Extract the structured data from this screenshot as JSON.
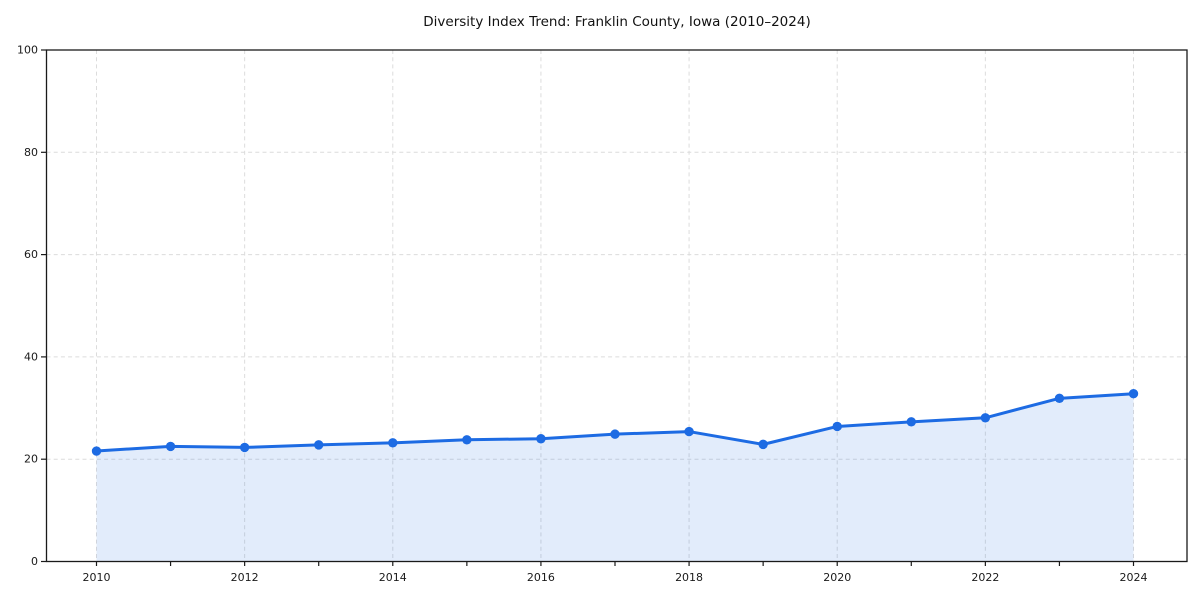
{
  "chart_data": {
    "type": "area",
    "title": "Diversity Index Trend: Franklin County, Iowa (2010–2024)",
    "x": [
      2010,
      2011,
      2012,
      2013,
      2014,
      2015,
      2016,
      2017,
      2018,
      2019,
      2020,
      2021,
      2022,
      2023,
      2024
    ],
    "series": [
      {
        "name": "Diversity Index",
        "values": [
          21.6,
          22.5,
          22.3,
          22.8,
          23.2,
          23.8,
          24.0,
          24.9,
          25.4,
          22.9,
          26.4,
          27.3,
          28.1,
          31.9,
          32.8
        ]
      }
    ],
    "xlabel": "",
    "ylabel": "",
    "ylim": [
      0,
      100
    ],
    "xticks": [
      2010,
      2012,
      2014,
      2016,
      2018,
      2020,
      2022,
      2024
    ],
    "yticks": [
      0,
      20,
      40,
      60,
      80,
      100
    ],
    "grid": "dashed",
    "grid_color": "#dcdcdc",
    "legend_position": "none",
    "line_color": "#1d6be3",
    "fill_color": "rgba(29,107,227,0.13)",
    "marker": "circle",
    "spine_color": "#1a1a1a"
  }
}
